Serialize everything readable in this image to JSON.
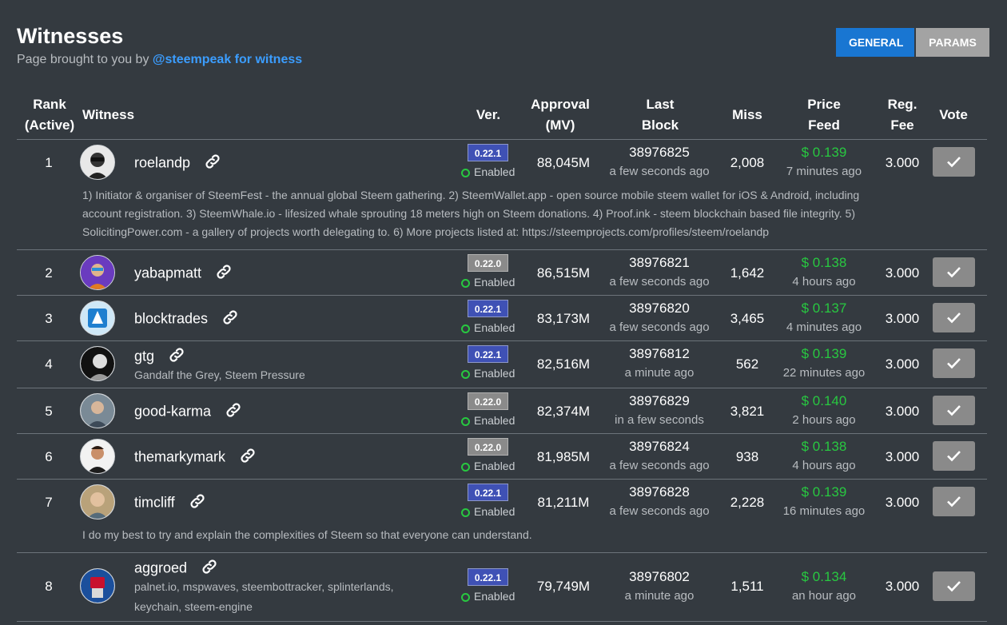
{
  "page": {
    "title": "Witnesses",
    "subtitle_prefix": "Page brought to you by",
    "subtitle_link": "@steempeak for witness"
  },
  "tabs": {
    "general": "GENERAL",
    "params": "PARAMS"
  },
  "columns": {
    "rank_line1": "Rank",
    "rank_line2": "(Active)",
    "witness": "Witness",
    "ver": "Ver.",
    "approval_line1": "Approval",
    "approval_line2": "(MV)",
    "last_line1": "Last",
    "last_line2": "Block",
    "miss": "Miss",
    "price_line1": "Price",
    "price_line2": "Feed",
    "fee_line1": "Reg.",
    "fee_line2": "Fee",
    "vote": "Vote"
  },
  "status_label": "Enabled",
  "colors": {
    "accent": "#1976d2",
    "link": "#3b9dff",
    "enabled": "#28c840",
    "version_current": "#3f51b5",
    "version_old": "#8a8a8a"
  },
  "icons": {
    "link": "link-icon",
    "vote": "check-icon",
    "status": "status-dot-icon"
  },
  "rows": [
    {
      "rank": "1",
      "name": "roelandp",
      "version": "0.22.1",
      "approval": "88,045M",
      "block": "38976825",
      "block_time": "a few seconds ago",
      "miss": "2,008",
      "price": "$ 0.139",
      "price_time": "7 minutes ago",
      "fee": "3.000",
      "desc_lines": [
        "1) Initiator & organiser of SteemFest - the annual global Steem gathering. 2) SteemWallet.app - open source mobile steem wallet for iOS & Android, including",
        "account registration. 3) SteemWhale.io - lifesized whale sprouting 18 meters high on Steem donations. 4) Proof.ink - steem blockchain based file integrity. 5)",
        "SolicitingPower.com - a gallery of projects worth delegating to. 6) More projects listed at: https://steemprojects.com/profiles/steem/roelandp"
      ]
    },
    {
      "rank": "2",
      "name": "yabapmatt",
      "version": "0.22.0",
      "approval": "86,515M",
      "block": "38976821",
      "block_time": "a few seconds ago",
      "miss": "1,642",
      "price": "$ 0.138",
      "price_time": "4 hours ago",
      "fee": "3.000"
    },
    {
      "rank": "3",
      "name": "blocktrades",
      "version": "0.22.1",
      "approval": "83,173M",
      "block": "38976820",
      "block_time": "a few seconds ago",
      "miss": "3,465",
      "price": "$ 0.137",
      "price_time": "4 minutes ago",
      "fee": "3.000"
    },
    {
      "rank": "4",
      "name": "gtg",
      "subtitle": "Gandalf the Grey, Steem Pressure",
      "version": "0.22.1",
      "approval": "82,516M",
      "block": "38976812",
      "block_time": "a minute ago",
      "miss": "562",
      "price": "$ 0.139",
      "price_time": "22 minutes ago",
      "fee": "3.000"
    },
    {
      "rank": "5",
      "name": "good-karma",
      "version": "0.22.0",
      "approval": "82,374M",
      "block": "38976829",
      "block_time": "in a few seconds",
      "miss": "3,821",
      "price": "$ 0.140",
      "price_time": "2 hours ago",
      "fee": "3.000"
    },
    {
      "rank": "6",
      "name": "themarkymark",
      "version": "0.22.0",
      "approval": "81,985M",
      "block": "38976824",
      "block_time": "a few seconds ago",
      "miss": "938",
      "price": "$ 0.138",
      "price_time": "4 hours ago",
      "fee": "3.000"
    },
    {
      "rank": "7",
      "name": "timcliff",
      "version": "0.22.1",
      "approval": "81,211M",
      "block": "38976828",
      "block_time": "a few seconds ago",
      "miss": "2,228",
      "price": "$ 0.139",
      "price_time": "16 minutes ago",
      "fee": "3.000",
      "desc_lines": [
        "I do my best to try and explain the complexities of Steem so that everyone can understand."
      ]
    },
    {
      "rank": "8",
      "name": "aggroed",
      "subtitle_lines": [
        "palnet.io, mspwaves, steembottracker, splinterlands,",
        "keychain, steem-engine"
      ],
      "version": "0.22.1",
      "approval": "79,749M",
      "block": "38976802",
      "block_time": "a minute ago",
      "miss": "1,511",
      "price": "$ 0.134",
      "price_time": "an hour ago",
      "fee": "3.000"
    }
  ]
}
